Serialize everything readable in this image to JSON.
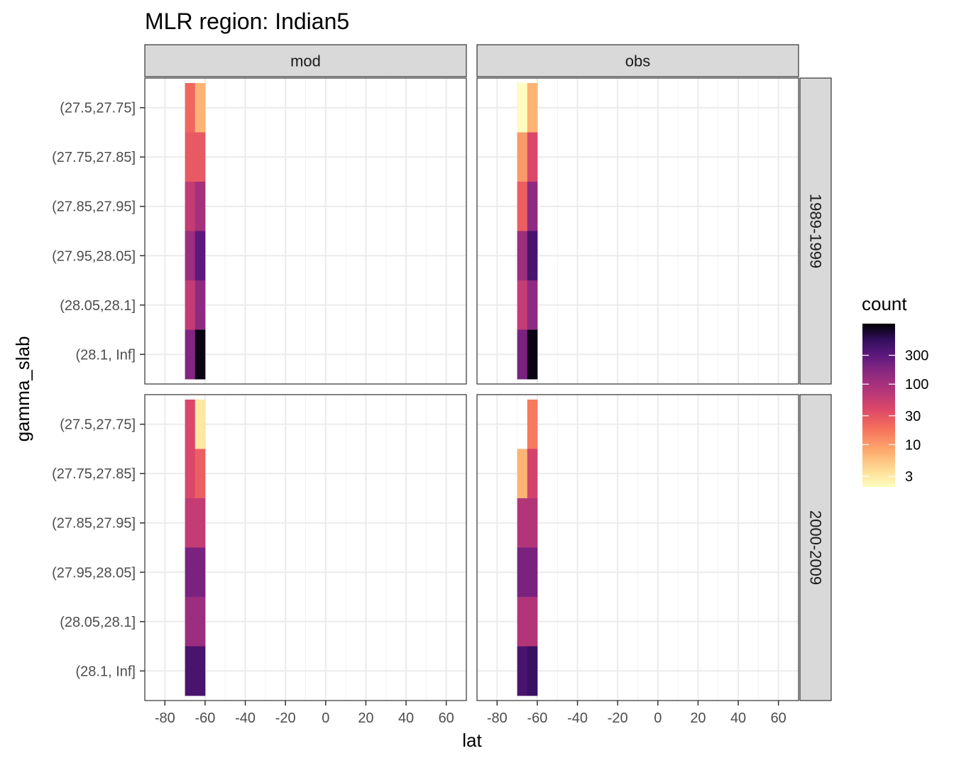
{
  "chart_data": {
    "type": "heatmap",
    "title": "MLR region:  Indian5",
    "xlabel": "lat",
    "ylabel": "gamma_slab",
    "x_ticks": [
      -80,
      -60,
      -40,
      -20,
      0,
      20,
      40,
      60
    ],
    "x_tick_labels": [
      "-80",
      "-60",
      "-40",
      "-20",
      "0",
      "20",
      "40",
      "60"
    ],
    "xlim": [
      -90,
      70
    ],
    "y_categories": [
      "(27.5,27.75]",
      "(27.75,27.85]",
      "(27.85,27.95]",
      "(27.95,28.05]",
      "(28.05,28.1]",
      "(28.1, Inf]"
    ],
    "column_facets": [
      "mod",
      "obs"
    ],
    "row_facets": [
      "1989-1999",
      "2000-2009"
    ],
    "lat_bins": [
      {
        "from": -70,
        "to": -65
      },
      {
        "from": -65,
        "to": -60
      }
    ],
    "panels": [
      {
        "column": "mod",
        "row": "1989-1999",
        "counts": [
          [
            22,
            7
          ],
          [
            28,
            28
          ],
          [
            60,
            100
          ],
          [
            120,
            300
          ],
          [
            60,
            150
          ],
          [
            180,
            900
          ]
        ]
      },
      {
        "column": "obs",
        "row": "1989-1999",
        "counts": [
          [
            2,
            7
          ],
          [
            10,
            40
          ],
          [
            25,
            150
          ],
          [
            120,
            400
          ],
          [
            60,
            150
          ],
          [
            200,
            900
          ]
        ]
      },
      {
        "column": "mod",
        "row": "2000-2009",
        "counts": [
          [
            40,
            3
          ],
          [
            40,
            25
          ],
          [
            60,
            60
          ],
          [
            200,
            200
          ],
          [
            120,
            120
          ],
          [
            400,
            400
          ]
        ]
      },
      {
        "column": "obs",
        "row": "2000-2009",
        "counts": [
          [
            null,
            16
          ],
          [
            7,
            45
          ],
          [
            80,
            80
          ],
          [
            200,
            200
          ],
          [
            80,
            80
          ],
          [
            400,
            500
          ]
        ]
      }
    ],
    "legend": {
      "title": "count",
      "position": "right",
      "scale": "log",
      "palette": "magma",
      "range": [
        2,
        1000
      ],
      "breaks": [
        3,
        10,
        30,
        100,
        300
      ],
      "break_labels": [
        "3",
        "10",
        "30",
        "100",
        "300"
      ]
    },
    "grid": true
  }
}
